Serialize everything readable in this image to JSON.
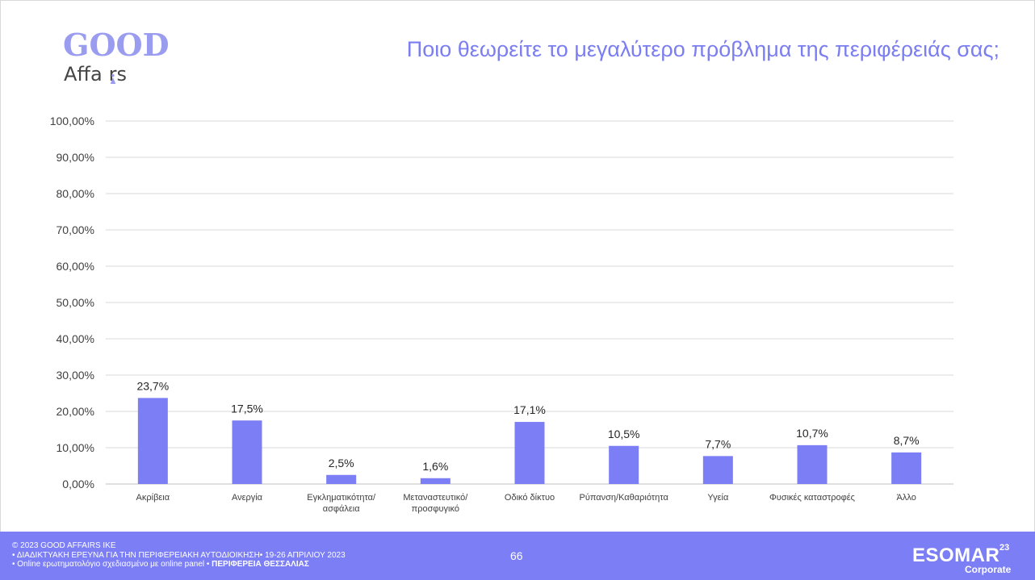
{
  "logo": {
    "word1": "GOOD",
    "word2": "Affa",
    "word2b": "rs"
  },
  "title": "Ποιο θεωρείτε το μεγαλύτερο πρόβλημα της περιφέρειάς σας;",
  "chart_data": {
    "type": "bar",
    "title": "Ποιο θεωρείτε το μεγαλύτερο πρόβλημα της περιφέρειάς σας;",
    "xlabel": "",
    "ylabel": "",
    "ylim": [
      0,
      100
    ],
    "grid": true,
    "yticks": [
      "0,00%",
      "10,00%",
      "20,00%",
      "30,00%",
      "40,00%",
      "50,00%",
      "60,00%",
      "70,00%",
      "80,00%",
      "90,00%",
      "100,00%"
    ],
    "categories": [
      [
        "Ακρίβεια"
      ],
      [
        "Ανεργία"
      ],
      [
        "Εγκληματικότητα/",
        "ασφάλεια"
      ],
      [
        "Μεταναστευτικό/",
        "προσφυγικό"
      ],
      [
        "Οδικό δίκτυο"
      ],
      [
        "Ρύπανση/Καθαριότητα"
      ],
      [
        "Υγεία"
      ],
      [
        "Φυσικές καταστροφές"
      ],
      [
        "Άλλο"
      ]
    ],
    "values": [
      23.7,
      17.5,
      2.5,
      1.6,
      17.1,
      10.5,
      7.7,
      10.7,
      8.7
    ],
    "data_labels": [
      "23,7%",
      "17,5%",
      "2,5%",
      "1,6%",
      "17,1%",
      "10,5%",
      "7,7%",
      "10,7%",
      "8,7%"
    ],
    "bar_color": "#7b7ef4"
  },
  "footer": {
    "line1": "© 2023 GOOD AFFAIRS IKE",
    "line2": "• ΔΙΑΔΙΚΤΥΑΚΗ ΕΡΕΥΝΑ  ΓΙΑ ΤΗΝ ΠΕΡΙΦΕΡΕΙΑΚΗ ΑΥΤΟΔΙΟΙΚΗΣΗ• 19-26 ΑΠΡΙΛΙΟΥ 2023",
    "line3": "• Online ερωτηματολόγιο σχεδιασμένο με online panel  •",
    "line3_bold": "ΠΕΡΙΦΕΡΕΙΑ ΘΕΣΣΑΛΙΑΣ",
    "page_number": "66",
    "esomar_name": "ESOMAR",
    "esomar_year": "23",
    "esomar_sub": "Corporate"
  },
  "colors": {
    "accent": "#7b7ef4",
    "title": "#7b7ef0",
    "logo": "#9a9cf0"
  }
}
